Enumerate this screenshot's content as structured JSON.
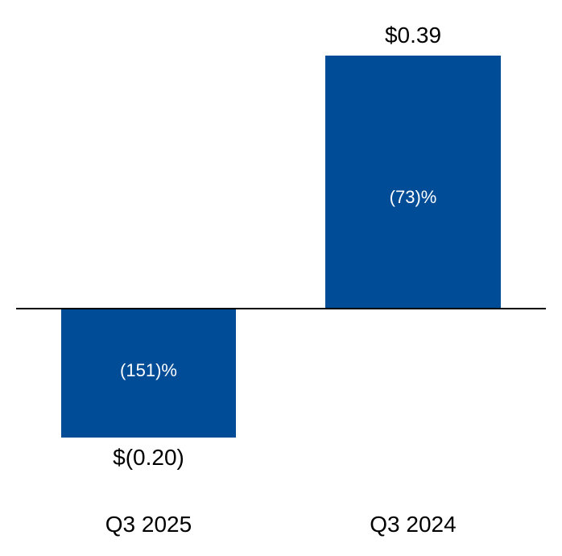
{
  "chart_data": {
    "type": "bar",
    "title": "",
    "xlabel": "",
    "ylabel": "",
    "categories": [
      "Q3 2025",
      "Q3 2024"
    ],
    "values": [
      -0.2,
      0.39
    ],
    "value_labels": [
      "$(0.20)",
      "$0.39"
    ],
    "bar_labels": [
      "(151)%",
      "(73)%"
    ],
    "ylim": [
      -0.26,
      0.45
    ],
    "grid": false,
    "legend": false,
    "baseline_value": 0,
    "colors": {
      "bar_fill": "#004C97",
      "inside_label_text": "#FFFFFF",
      "outside_label_text": "#000000",
      "axis_line": "#000000",
      "background": "#FFFFFF"
    }
  }
}
